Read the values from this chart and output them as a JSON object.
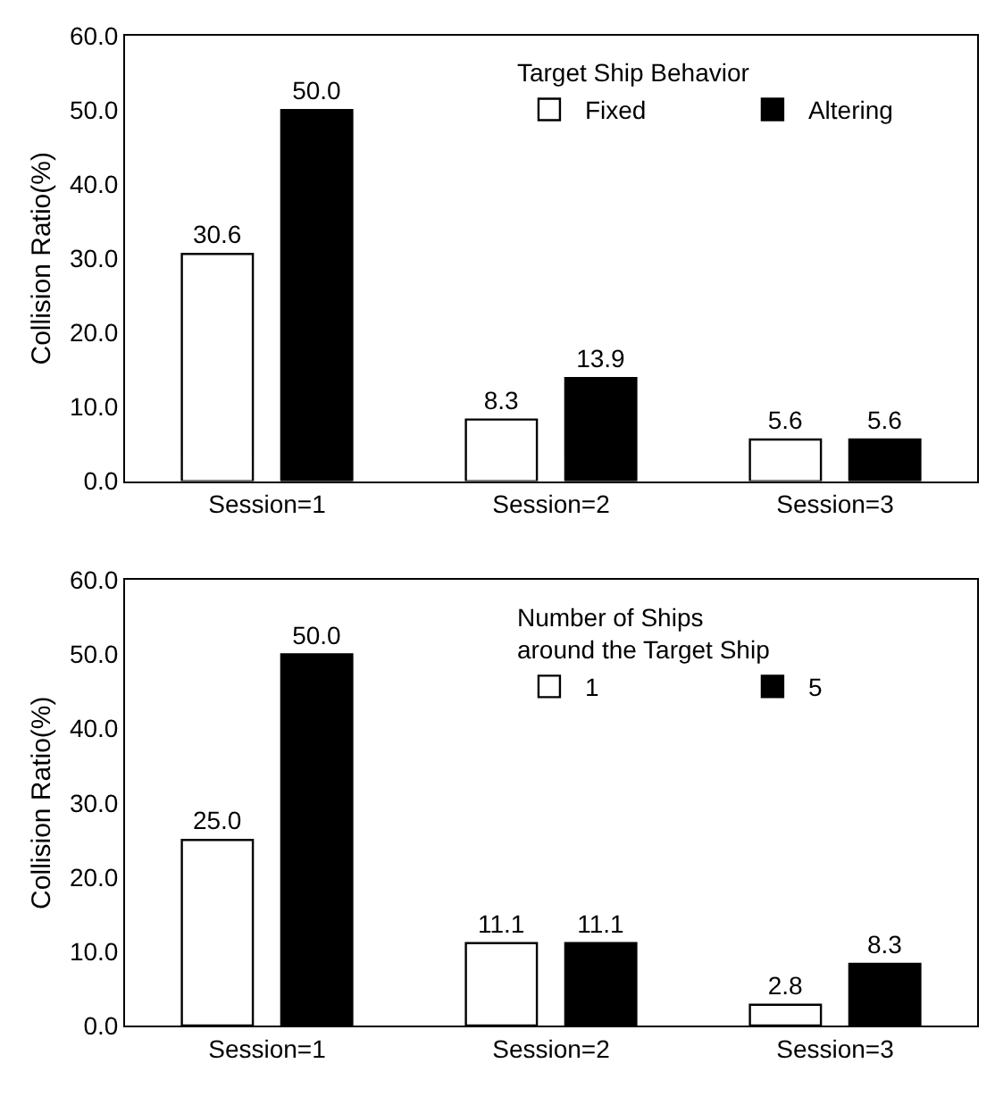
{
  "chart_data": [
    {
      "type": "bar",
      "ylabel": "Collision Ratio(%)",
      "legend_title": "Target Ship Behavior",
      "categories": [
        "Session=1",
        "Session=2",
        "Session=3"
      ],
      "series": [
        {
          "name": "Fixed",
          "color": "#ffffff",
          "values": [
            30.6,
            8.3,
            5.6
          ],
          "value_labels": [
            "30.6",
            "8.3",
            "5.6"
          ]
        },
        {
          "name": "Altering",
          "color": "#000000",
          "values": [
            50.0,
            13.9,
            5.6
          ],
          "value_labels": [
            "50.0",
            "13.9",
            "5.6"
          ]
        }
      ],
      "ylim": [
        0,
        60
      ],
      "yticks": [
        {
          "value": 0,
          "label": "0.0"
        },
        {
          "value": 10,
          "label": "10.0"
        },
        {
          "value": 20,
          "label": "20.0"
        },
        {
          "value": 30,
          "label": "30.0"
        },
        {
          "value": 40,
          "label": "40.0"
        },
        {
          "value": 50,
          "label": "50.0"
        },
        {
          "value": 60,
          "label": "60.0"
        }
      ],
      "legend": "top right"
    },
    {
      "type": "bar",
      "ylabel": "Collision Ratio(%)",
      "legend_title": "Number of Ships\naround the Target Ship",
      "categories": [
        "Session=1",
        "Session=2",
        "Session=3"
      ],
      "series": [
        {
          "name": "1",
          "color": "#ffffff",
          "values": [
            25.0,
            11.1,
            2.8
          ],
          "value_labels": [
            "25.0",
            "11.1",
            "2.8"
          ]
        },
        {
          "name": "5",
          "color": "#000000",
          "values": [
            50.0,
            11.1,
            8.3
          ],
          "value_labels": [
            "50.0",
            "11.1",
            "8.3"
          ]
        }
      ],
      "ylim": [
        0,
        60
      ],
      "yticks": [
        {
          "value": 0,
          "label": "0.0"
        },
        {
          "value": 10,
          "label": "10.0"
        },
        {
          "value": 20,
          "label": "20.0"
        },
        {
          "value": 30,
          "label": "30.0"
        },
        {
          "value": 40,
          "label": "40.0"
        },
        {
          "value": 50,
          "label": "50.0"
        },
        {
          "value": 60,
          "label": "60.0"
        }
      ],
      "legend": "top right"
    }
  ]
}
